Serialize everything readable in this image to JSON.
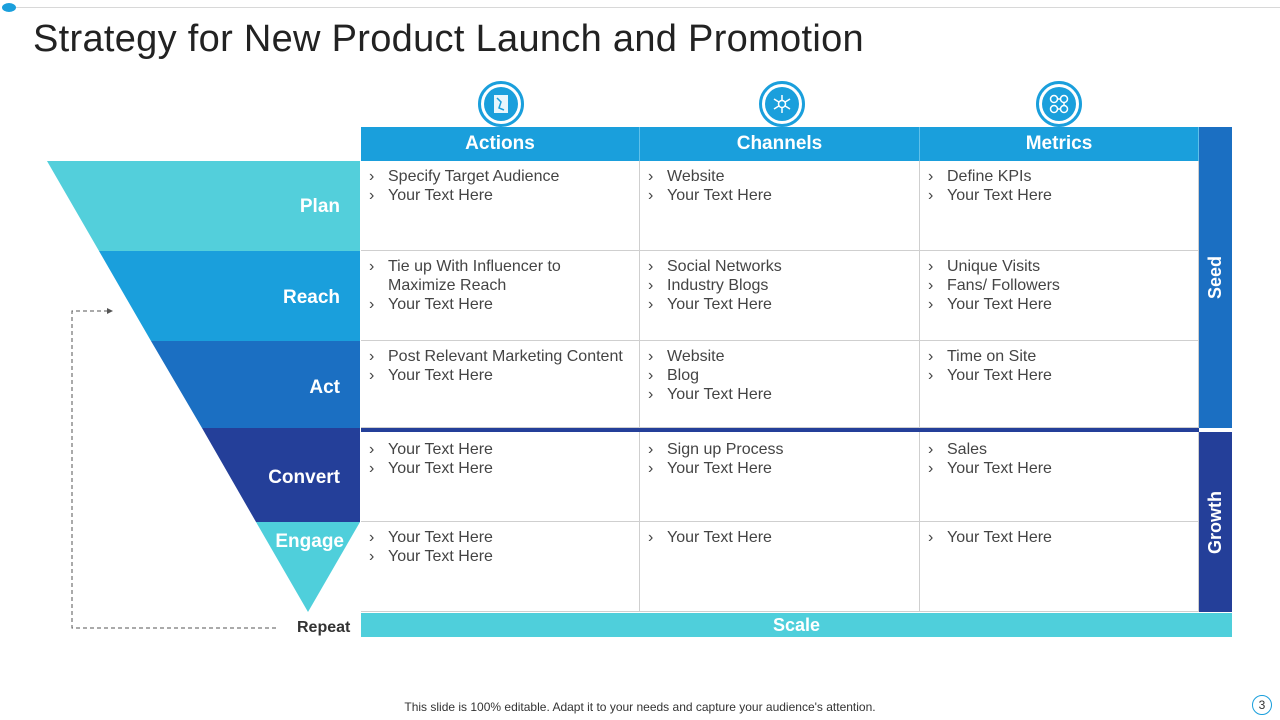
{
  "title": "Strategy for New Product Launch and Promotion",
  "columns": [
    {
      "label": "Actions",
      "icon": "strategy-board-icon"
    },
    {
      "label": "Channels",
      "icon": "network-hub-icon"
    },
    {
      "label": "Metrics",
      "icon": "process-flow-icon"
    }
  ],
  "rows": [
    {
      "stage": "Plan",
      "color": "#53cfdb",
      "cells": [
        [
          "Specify Target Audience",
          "Your Text Here"
        ],
        [
          "Website",
          "Your Text Here"
        ],
        [
          "Define KPIs",
          "Your Text Here"
        ]
      ]
    },
    {
      "stage": "Reach",
      "color": "#1a9fdc",
      "cells": [
        [
          "Tie up With Influencer  to Maximize Reach",
          "Your Text Here"
        ],
        [
          "Social Networks",
          "Industry  Blogs",
          "Your Text Here"
        ],
        [
          "Unique Visits",
          "Fans/ Followers",
          "Your Text Here"
        ]
      ]
    },
    {
      "stage": "Act",
      "color": "#1b6fc2",
      "cells": [
        [
          "Post Relevant  Marketing Content",
          "Your Text Here"
        ],
        [
          "Website",
          "Blog",
          "Your Text Here"
        ],
        [
          "Time on Site",
          "Your Text Here"
        ]
      ]
    },
    {
      "stage": "Convert",
      "color": "#243f99",
      "cells": [
        [
          "Your Text Here",
          "Your Text Here"
        ],
        [
          "Sign up Process",
          "Your Text Here"
        ],
        [
          "Sales",
          "Your Text Here"
        ]
      ]
    },
    {
      "stage": "Engage",
      "color": "#4fcfdb",
      "cells": [
        [
          "Your Text Here",
          "Your Text Here"
        ],
        [
          "Your Text Here"
        ],
        [
          "Your Text Here"
        ]
      ]
    }
  ],
  "side": {
    "seed": "Seed",
    "growth": "Growth",
    "scale": "Scale"
  },
  "repeat": "Repeat",
  "footer": "This slide is 100% editable. Adapt it to your needs and capture your audience's attention.",
  "page": "3",
  "bullet": "›"
}
